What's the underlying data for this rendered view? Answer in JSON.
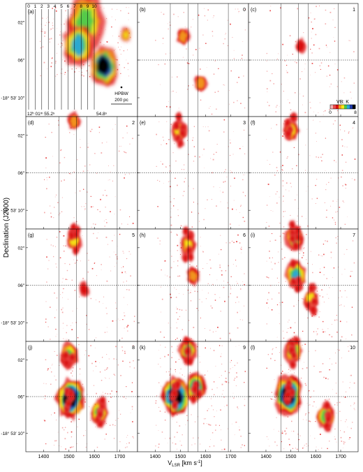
{
  "figure": {
    "ylabel": "Declination (J2000)",
    "xlabel_main": "V",
    "xlabel_sub": "LSR",
    "xlabel_rest": " [km s",
    "xlabel_sup": "-1",
    "xlabel_end": "]"
  },
  "dec_ticks": [
    {
      "label": "02″",
      "value": 2
    },
    {
      "label": "06″",
      "value": 6
    },
    {
      "label": "10″",
      "value": 10,
      "prefix": "-18° 53′ "
    }
  ],
  "vel_ticks": [
    1400,
    1500,
    1600,
    1700
  ],
  "vel_range": [
    1330,
    1770
  ],
  "dec_range": [
    0,
    12
  ],
  "panel_a": {
    "letter": "(a)",
    "slit_numbers": [
      "0",
      "1",
      "2",
      "3",
      "4",
      "5",
      "6",
      "7",
      "8",
      "9",
      "10"
    ],
    "ra_left": "12ʰ 01ᵐ 55.2ˢ",
    "ra_right": "54.8ˢ",
    "hpbw_label": "HPBW",
    "scale_label": "200 pc"
  },
  "colorbar": {
    "title": "VB: K",
    "min": "0",
    "max": "8",
    "colors": [
      "#ffffff",
      "#f4b3b3",
      "#e84c4c",
      "#d81010",
      "#f29a1a",
      "#f4e619",
      "#4bc84b",
      "#2aa6d8",
      "#1f3aa8",
      "#000000"
    ]
  },
  "panels": [
    {
      "letter": "(b)",
      "number": "0"
    },
    {
      "letter": "(c)",
      "number": "1"
    },
    {
      "letter": "(d)",
      "number": "2"
    },
    {
      "letter": "(e)",
      "number": "3"
    },
    {
      "letter": "(f)",
      "number": "4"
    },
    {
      "letter": "(g)",
      "number": "5"
    },
    {
      "letter": "(h)",
      "number": "6"
    },
    {
      "letter": "(i)",
      "number": "7"
    },
    {
      "letter": "(j)",
      "number": "8"
    },
    {
      "letter": "(k)",
      "number": "9"
    },
    {
      "letter": "(l)",
      "number": "10"
    }
  ],
  "chart_data": {
    "type": "heatmap",
    "title": "",
    "xlabel": "V_LSR [km s^-1]",
    "ylabel": "Declination (J2000)",
    "x_ticks": [
      1400,
      1500,
      1600,
      1700
    ],
    "y_ticks": [
      "02″",
      "06″",
      "-18° 53′ 10″"
    ],
    "colorbar": {
      "label": "VB: K",
      "range": [
        0,
        8
      ]
    },
    "reference_lines_velocity": [
      1460,
      1530,
      1570,
      1690
    ],
    "reference_line_dec": 6,
    "panels": [
      {
        "id": "(b)",
        "slit": 0,
        "features": [
          {
            "v": 1510,
            "dec": 3.5,
            "peak": 2
          },
          {
            "v": 1580,
            "dec": 8.5,
            "peak": 2
          }
        ]
      },
      {
        "id": "(c)",
        "slit": 1,
        "features": [
          {
            "v": 1540,
            "dec": 4.5,
            "peak": 1
          }
        ]
      },
      {
        "id": "(d)",
        "slit": 2,
        "features": [
          {
            "v": 1520,
            "dec": 0.5,
            "peak": 2
          }
        ]
      },
      {
        "id": "(e)",
        "slit": 3,
        "features": [
          {
            "v": 1495,
            "dec": 1.5,
            "peak": 3
          }
        ]
      },
      {
        "id": "(f)",
        "slit": 4,
        "features": [
          {
            "v": 1500,
            "dec": 1.5,
            "peak": 3
          }
        ]
      },
      {
        "id": "(g)",
        "slit": 5,
        "features": [
          {
            "v": 1520,
            "dec": 1.2,
            "peak": 3
          },
          {
            "v": 1560,
            "dec": 6.5,
            "peak": 1
          }
        ]
      },
      {
        "id": "(h)",
        "slit": 6,
        "features": [
          {
            "v": 1530,
            "dec": 1.6,
            "peak": 3
          },
          {
            "v": 1550,
            "dec": 5.0,
            "peak": 2
          }
        ]
      },
      {
        "id": "(i)",
        "slit": 7,
        "features": [
          {
            "v": 1515,
            "dec": 1.0,
            "peak": 4
          },
          {
            "v": 1520,
            "dec": 5.0,
            "peak": 5
          },
          {
            "v": 1580,
            "dec": 7.5,
            "peak": 3
          }
        ]
      },
      {
        "id": "(j)",
        "slit": 8,
        "features": [
          {
            "v": 1500,
            "dec": 1.5,
            "peak": 4
          },
          {
            "v": 1505,
            "dec": 6.2,
            "peak": 8
          },
          {
            "v": 1620,
            "dec": 7.8,
            "peak": 4
          }
        ]
      },
      {
        "id": "(k)",
        "slit": 9,
        "features": [
          {
            "v": 1530,
            "dec": 1.0,
            "peak": 4
          },
          {
            "v": 1480,
            "dec": 6.0,
            "peak": 8
          },
          {
            "v": 1560,
            "dec": 5.0,
            "peak": 5
          }
        ]
      },
      {
        "id": "(l)",
        "slit": 10,
        "features": [
          {
            "v": 1510,
            "dec": 1.0,
            "peak": 4
          },
          {
            "v": 1490,
            "dec": 5.8,
            "peak": 8
          },
          {
            "v": 1640,
            "dec": 8.2,
            "peak": 4
          }
        ]
      }
    ]
  }
}
